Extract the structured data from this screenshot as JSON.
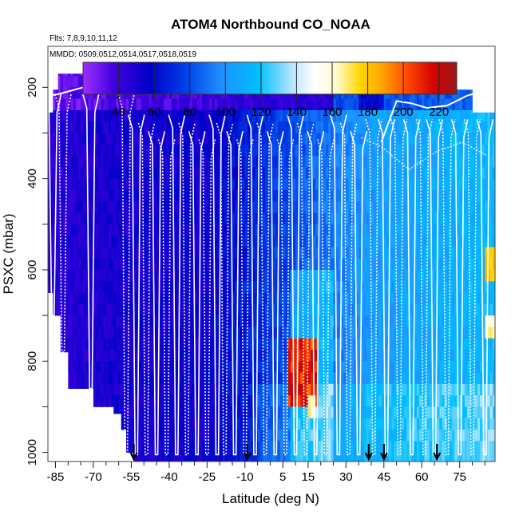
{
  "chart_data": {
    "type": "heatmap",
    "title": "ATOM4 Northbound CO_NOAA",
    "flights_note": "Flts: 7,8,9,10,11,12",
    "dates_note": "MMDD: 0509,0512,0514,0517,0518,0519",
    "xlabel": "Latitude (deg N)",
    "ylabel": "PSXC (mbar)",
    "xlim": [
      -88,
      89
    ],
    "ylim": [
      1020,
      110
    ],
    "x_ticks": [
      -85,
      -70,
      -55,
      -40,
      -25,
      -10,
      5,
      15,
      30,
      45,
      60,
      75
    ],
    "y_ticks": [
      200,
      400,
      600,
      800,
      1000
    ],
    "colorbar": {
      "min": 20,
      "max": 230,
      "ticks": [
        40,
        60,
        80,
        100,
        120,
        140,
        160,
        180,
        200,
        220
      ]
    },
    "arrow_latitudes": [
      -54,
      -9,
      39,
      45,
      66
    ],
    "approx_values": [
      {
        "region": "lat -88 to -30, 250-950 mbar",
        "co_ppb": 45
      },
      {
        "region": "lat -88 to 25, 170-260 mbar",
        "co_ppb": 35
      },
      {
        "region": "lat -30 to 40, 300-1000 mbar",
        "co_ppb": 85
      },
      {
        "region": "lat 40 to 89, 300-1000 mbar",
        "co_ppb": 105
      },
      {
        "region": "lat 8 to 18, 760-880 mbar",
        "co_ppb": 200
      },
      {
        "region": "lat 85 to 87, 570-620 mbar",
        "co_ppb": 165
      }
    ]
  }
}
